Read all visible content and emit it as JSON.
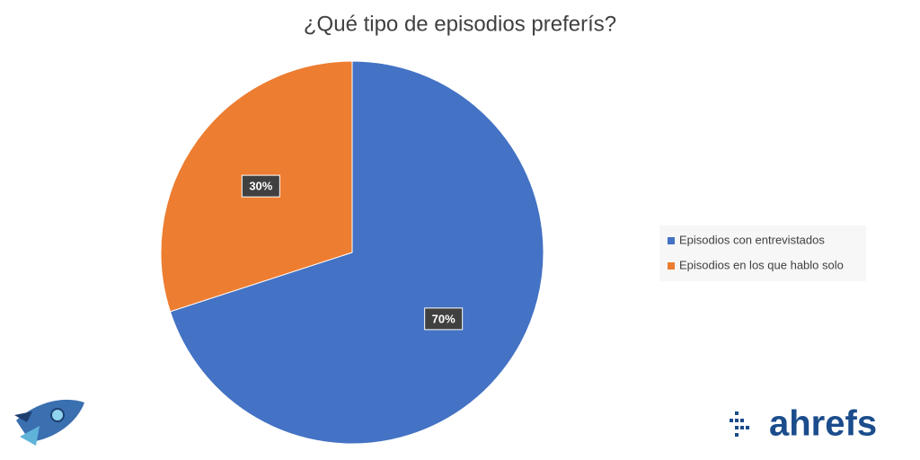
{
  "chart_data": {
    "type": "pie",
    "title": "¿Qué tipo de episodios preferís?",
    "categories": [
      "Episodios con entrevistados",
      "Episodios en los que hablo solo"
    ],
    "values": [
      70,
      30
    ],
    "value_labels": [
      "70%",
      "30%"
    ],
    "colors": [
      "#4472c4",
      "#ed7d31"
    ],
    "legend": "right"
  },
  "watermark": "ahrefs"
}
